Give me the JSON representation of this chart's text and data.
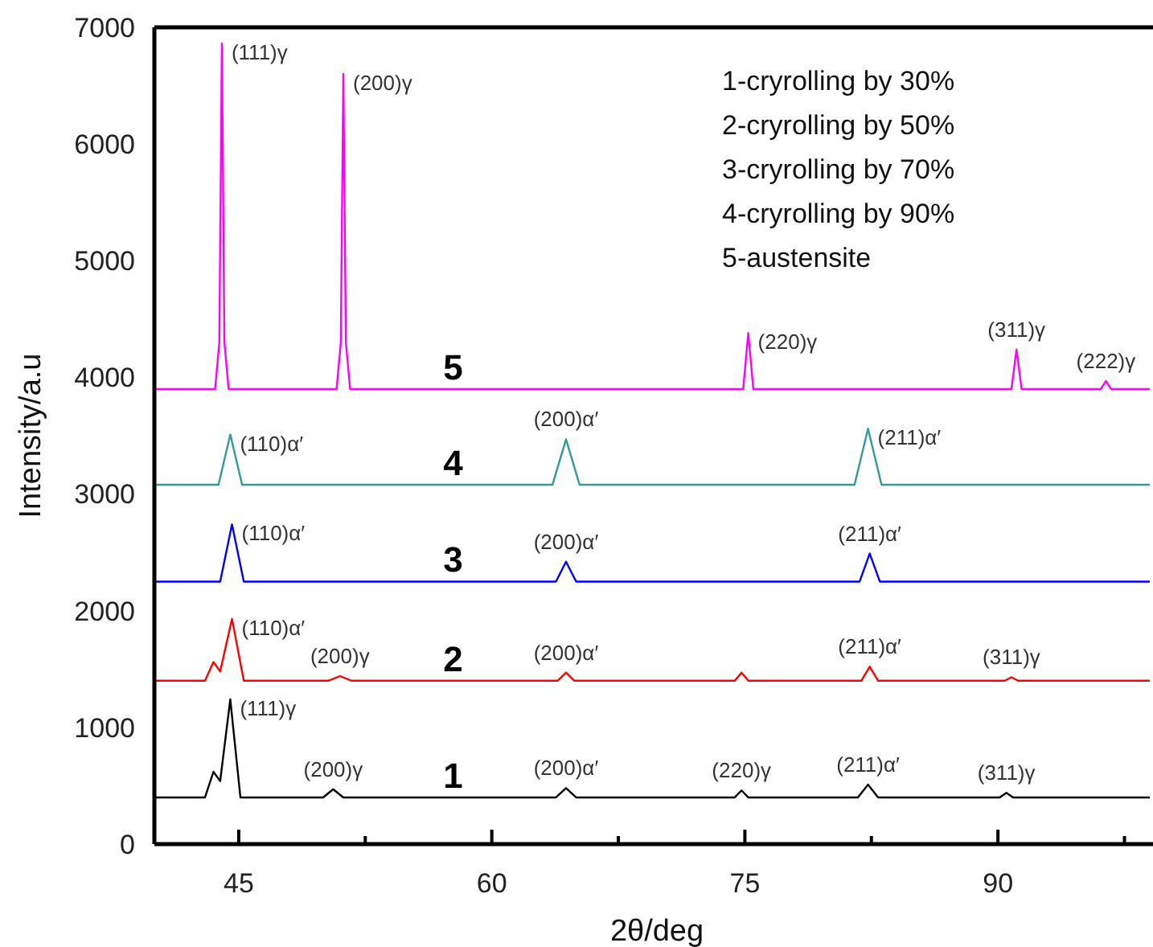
{
  "chart_data": {
    "type": "line",
    "xlabel": "2θ/deg",
    "ylabel": "Intensity/a.u",
    "xlim": [
      40,
      99
    ],
    "ylim": [
      0,
      7000
    ],
    "xticks": [
      45,
      {
        "value": 52.5,
        "label": null
      },
      60,
      {
        "value": 67.5,
        "label": null
      },
      75,
      {
        "value": 82.5,
        "label": null
      },
      90,
      {
        "value": 97.5,
        "label": null
      }
    ],
    "yticks": [
      0,
      1000,
      2000,
      3000,
      4000,
      5000,
      6000,
      7000
    ],
    "grid": false,
    "marker": "none",
    "line_style": "solid",
    "series": [
      {
        "name": "1",
        "color": "#000000",
        "x": [
          40,
          43.0,
          43.5,
          43.9,
          44.5,
          45.1,
          50.0,
          50.6,
          51.2,
          63.8,
          64.4,
          65.0,
          74.4,
          74.8,
          75.2,
          81.7,
          82.3,
          82.9,
          90.1,
          90.5,
          90.9,
          99
        ],
        "values": [
          400,
          400,
          620,
          540,
          1240,
          400,
          400,
          470,
          400,
          400,
          480,
          400,
          400,
          460,
          400,
          400,
          510,
          400,
          400,
          440,
          400,
          400
        ]
      },
      {
        "name": "2",
        "color": "#ff0000",
        "x": [
          40,
          43.0,
          43.5,
          43.9,
          44.6,
          45.3,
          50.3,
          51,
          51.7,
          63.9,
          64.4,
          64.9,
          74.4,
          74.8,
          75.2,
          81.9,
          82.4,
          82.9,
          90.4,
          90.8,
          91.2,
          99
        ],
        "values": [
          1400,
          1400,
          1560,
          1480,
          1930,
          1400,
          1400,
          1440,
          1400,
          1400,
          1470,
          1400,
          1400,
          1470,
          1400,
          1400,
          1520,
          1400,
          1400,
          1430,
          1400,
          1400
        ]
      },
      {
        "name": "3",
        "color": "#0000ff",
        "x": [
          40,
          43.9,
          44.6,
          45.3,
          63.8,
          64.4,
          65.0,
          81.8,
          82.4,
          83.0,
          99
        ],
        "values": [
          2250,
          2250,
          2740,
          2250,
          2250,
          2420,
          2250,
          2250,
          2490,
          2250,
          2250
        ]
      },
      {
        "name": "4",
        "color": "#339999",
        "x": [
          40,
          43.8,
          44.5,
          45.2,
          63.6,
          64.4,
          65.2,
          81.5,
          82.3,
          83.1,
          99
        ],
        "values": [
          3080,
          3080,
          3510,
          3080,
          3080,
          3470,
          3080,
          3080,
          3560,
          3080,
          3080
        ]
      },
      {
        "name": "5",
        "color": "#ff00ff",
        "x": [
          40,
          43.6,
          43.85,
          44.0,
          44.15,
          44.4,
          50.8,
          51.05,
          51.2,
          51.35,
          51.6,
          74.9,
          75.2,
          75.5,
          90.8,
          91.1,
          91.4,
          96.1,
          96.4,
          96.7,
          99
        ],
        "values": [
          3900,
          3900,
          4300,
          6860,
          4300,
          3900,
          3900,
          4300,
          6600,
          4300,
          3900,
          3900,
          4380,
          3900,
          3900,
          4240,
          3900,
          3900,
          3970,
          3900,
          3900
        ]
      }
    ],
    "annotations": [
      "1-cryrolling by 30%",
      "2-cryrolling by 50%",
      "3-cryrolling by 70%",
      "4-cryrolling by 90%",
      "5-austensite",
      {
        "text": "(111)γ",
        "x": 44.0,
        "y": 6860
      },
      {
        "text": "(200)γ",
        "x": 51.2,
        "y": 6600
      },
      {
        "text": "(220)γ",
        "x": 75.2,
        "y": 4380
      },
      {
        "text": "(311)γ",
        "x": 91.1,
        "y": 4240
      },
      {
        "text": "(222)γ",
        "x": 96.4,
        "y": 3970
      },
      {
        "text": "(110)α′",
        "x": 44.5,
        "y": 3510
      },
      {
        "text": "(200)α′",
        "x": 64.4,
        "y": 3470
      },
      {
        "text": "(211)α′",
        "x": 82.3,
        "y": 3560
      },
      {
        "text": "(110)α′",
        "x": 44.6,
        "y": 2740
      },
      {
        "text": "(200)α′",
        "x": 64.4,
        "y": 2420
      },
      {
        "text": "(211)α′",
        "x": 82.4,
        "y": 2490
      },
      {
        "text": "(110)α′",
        "x": 44.6,
        "y": 1930
      },
      {
        "text": "(200)γ",
        "x": 51,
        "y": 1440
      },
      {
        "text": "(200)α′",
        "x": 64.4,
        "y": 1470
      },
      {
        "text": "(211)α′",
        "x": 82.4,
        "y": 1520
      },
      {
        "text": "(311)γ",
        "x": 90.8,
        "y": 1430
      },
      {
        "text": "(111)γ",
        "x": 44.5,
        "y": 1240
      },
      {
        "text": "(200)γ",
        "x": 50.6,
        "y": 470
      },
      {
        "text": "(200)α′",
        "x": 64.4,
        "y": 480
      },
      {
        "text": "(220)γ",
        "x": 74.8,
        "y": 460
      },
      {
        "text": "(211)α′",
        "x": 82.3,
        "y": 510
      },
      {
        "text": "(311)γ",
        "x": 90.5,
        "y": 440
      }
    ]
  }
}
